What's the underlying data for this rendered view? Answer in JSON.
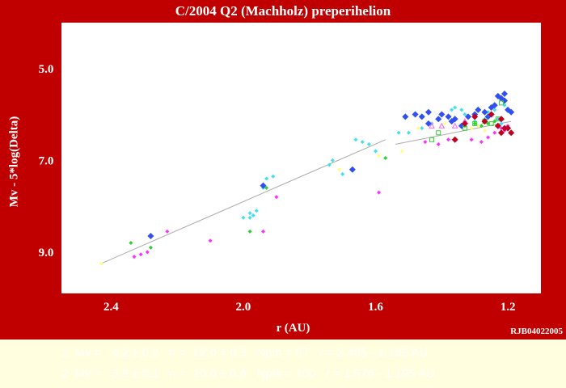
{
  "chart_data": {
    "type": "scatter",
    "title": "C/2004 Q2 (Machholz)  preperihelion",
    "xlabel": "r (AU)",
    "ylabel": "Mv - 5*log(Delta)",
    "x_reversed": true,
    "y_reversed": true,
    "xlim": [
      2.55,
      1.1
    ],
    "ylim": [
      4.0,
      9.9
    ],
    "xticks": [
      2.4,
      2.0,
      1.6,
      1.2
    ],
    "xtick_labels": [
      "2.4",
      "2.0",
      "1.6",
      "1.2"
    ],
    "yticks": [
      5.0,
      7.0,
      9.0
    ],
    "ytick_labels": [
      "5.0",
      "7.0",
      "9.0"
    ],
    "grid": false,
    "credit": "RJB04022005",
    "fit_lines": [
      {
        "x": [
          2.43,
          1.57
        ],
        "y": [
          9.25,
          6.55
        ],
        "color": "#aaaaaa"
      },
      {
        "x": [
          1.54,
          1.19
        ],
        "y": [
          6.65,
          6.15
        ],
        "color": "#aaaaaa"
      }
    ],
    "series": [
      {
        "color": "#40e0f0",
        "marker": "diamond-small",
        "points": [
          [
            1.96,
            8.1
          ],
          [
            1.97,
            8.2
          ],
          [
            1.98,
            8.15
          ],
          [
            1.98,
            8.25
          ],
          [
            1.93,
            7.4
          ],
          [
            1.91,
            7.35
          ],
          [
            1.94,
            7.6
          ],
          [
            2.0,
            8.25
          ],
          [
            1.74,
            7.1
          ],
          [
            1.73,
            7.0
          ],
          [
            1.7,
            7.3
          ],
          [
            1.66,
            6.55
          ],
          [
            1.64,
            6.6
          ],
          [
            1.62,
            6.65
          ],
          [
            1.6,
            6.8
          ],
          [
            1.53,
            6.4
          ],
          [
            1.5,
            6.4
          ],
          [
            1.46,
            6.3
          ],
          [
            1.43,
            6.2
          ],
          [
            1.37,
            5.9
          ],
          [
            1.36,
            5.85
          ],
          [
            1.34,
            5.9
          ],
          [
            1.33,
            6.0
          ],
          [
            1.3,
            6.15
          ],
          [
            1.27,
            6.1
          ],
          [
            1.26,
            5.95
          ],
          [
            1.24,
            5.9
          ],
          [
            1.23,
            6.1
          ],
          [
            1.22,
            6.2
          ],
          [
            1.21,
            5.8
          ]
        ]
      },
      {
        "color": "#3050f0",
        "marker": "diamond",
        "points": [
          [
            2.28,
            8.65
          ],
          [
            1.94,
            7.55
          ],
          [
            1.67,
            7.2
          ],
          [
            1.51,
            6.05
          ],
          [
            1.48,
            6.0
          ],
          [
            1.46,
            6.05
          ],
          [
            1.44,
            5.95
          ],
          [
            1.41,
            6.1
          ],
          [
            1.4,
            6.0
          ],
          [
            1.38,
            6.05
          ],
          [
            1.36,
            6.1
          ],
          [
            1.34,
            6.25
          ],
          [
            1.32,
            6.05
          ],
          [
            1.3,
            6.0
          ],
          [
            1.29,
            5.9
          ],
          [
            1.27,
            5.95
          ],
          [
            1.26,
            6.05
          ],
          [
            1.25,
            5.85
          ],
          [
            1.24,
            5.8
          ],
          [
            1.23,
            5.6
          ],
          [
            1.22,
            5.65
          ],
          [
            1.21,
            5.7
          ],
          [
            1.2,
            5.9
          ],
          [
            1.19,
            5.95
          ],
          [
            1.21,
            5.55
          ],
          [
            1.44,
            6.2
          ],
          [
            1.37,
            6.15
          ]
        ]
      },
      {
        "color": "#ff30ff",
        "marker": "diamond-small",
        "points": [
          [
            2.33,
            9.1
          ],
          [
            2.31,
            9.05
          ],
          [
            2.29,
            9.0
          ],
          [
            2.23,
            8.55
          ],
          [
            2.1,
            8.75
          ],
          [
            1.94,
            8.55
          ],
          [
            1.9,
            7.8
          ],
          [
            1.59,
            7.7
          ],
          [
            1.45,
            6.6
          ],
          [
            1.41,
            6.65
          ],
          [
            1.38,
            6.55
          ],
          [
            1.31,
            6.55
          ],
          [
            1.28,
            6.6
          ],
          [
            1.26,
            6.5
          ],
          [
            1.24,
            6.4
          ],
          [
            1.22,
            6.3
          ],
          [
            1.21,
            6.35
          ],
          [
            1.2,
            6.25
          ]
        ]
      },
      {
        "color": "#30d030",
        "marker": "diamond-small",
        "points": [
          [
            2.34,
            8.8
          ],
          [
            2.28,
            8.9
          ],
          [
            1.98,
            8.55
          ],
          [
            1.93,
            7.6
          ],
          [
            1.57,
            6.95
          ],
          [
            1.33,
            6.25
          ],
          [
            1.3,
            6.2
          ],
          [
            1.28,
            6.25
          ],
          [
            1.26,
            6.2
          ],
          [
            1.24,
            6.15
          ]
        ]
      },
      {
        "color": "#ffff80",
        "marker": "diamond-small",
        "points": [
          [
            2.43,
            9.25
          ],
          [
            1.71,
            7.2
          ],
          [
            1.59,
            6.9
          ],
          [
            1.52,
            6.8
          ],
          [
            1.47,
            6.3
          ],
          [
            1.39,
            6.2
          ],
          [
            1.31,
            6.3
          ],
          [
            1.29,
            6.25
          ],
          [
            1.27,
            6.35
          ]
        ]
      },
      {
        "color": "#30d030",
        "marker": "square-open",
        "points": [
          [
            1.43,
            6.55
          ],
          [
            1.41,
            6.4
          ],
          [
            1.33,
            6.3
          ],
          [
            1.3,
            6.2
          ],
          [
            1.27,
            6.15
          ],
          [
            1.25,
            6.2
          ],
          [
            1.23,
            6.1
          ],
          [
            1.22,
            5.75
          ]
        ]
      },
      {
        "color": "#ff60ff",
        "marker": "triangle-open",
        "points": [
          [
            1.43,
            6.25
          ],
          [
            1.4,
            6.25
          ],
          [
            1.36,
            6.25
          ],
          [
            1.33,
            6.15
          ]
        ]
      },
      {
        "color": "#c00020",
        "marker": "diamond",
        "points": [
          [
            1.36,
            6.55
          ],
          [
            1.33,
            6.2
          ],
          [
            1.3,
            6.05
          ],
          [
            1.27,
            6.15
          ],
          [
            1.25,
            6.0
          ],
          [
            1.23,
            6.25
          ],
          [
            1.22,
            6.1
          ],
          [
            1.21,
            6.3
          ],
          [
            1.2,
            6.3
          ],
          [
            1.19,
            6.4
          ],
          [
            1.22,
            6.4
          ]
        ]
      }
    ]
  },
  "footer": {
    "line1": "1  Mv =   4.2 ± 0.2   n =  12.0 ± 0.5   Npts = 67   r = 2.465 - 1.165 AU",
    "line2": "2  Mv =   5.8 ± 0.1   n =  10.0 ± 0.6   Npts = 100   r = 1.576 - 1.195 AU"
  }
}
